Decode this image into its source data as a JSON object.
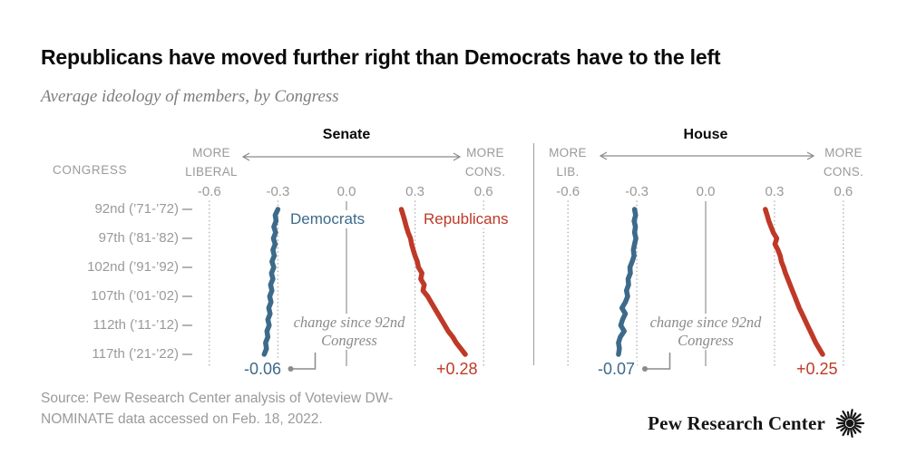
{
  "header": {
    "title": "Republicans have moved further right than Democrats have to the left",
    "subtitle": "Average ideology of members, by Congress"
  },
  "y_axis": {
    "header": "CONGRESS",
    "rows": [
      {
        "congress": 92,
        "label": "92nd (’71-’72)"
      },
      {
        "congress": 97,
        "label": "97th (’81-’82)"
      },
      {
        "congress": 102,
        "label": "102nd (’91-’92)"
      },
      {
        "congress": 107,
        "label": "107th (’01-’02)"
      },
      {
        "congress": 112,
        "label": "112th (’11-’12)"
      },
      {
        "congress": 117,
        "label": "117th (’21-’22)"
      }
    ]
  },
  "chart_data": [
    {
      "type": "line",
      "title": "Senate",
      "x_axis": {
        "left_label": "MORE LIBERAL",
        "right_label": "MORE CONS.",
        "ticks": [
          -0.6,
          -0.3,
          0.0,
          0.3,
          0.6
        ],
        "lim": [
          -0.6,
          0.6
        ]
      },
      "congresses": [
        92,
        93,
        94,
        95,
        96,
        97,
        98,
        99,
        100,
        101,
        102,
        103,
        104,
        105,
        106,
        107,
        108,
        109,
        110,
        111,
        112,
        113,
        114,
        115,
        116,
        117
      ],
      "series": [
        {
          "name": "Democrats",
          "color": "#3d6a8a",
          "values": [
            -0.3,
            -0.312,
            -0.308,
            -0.318,
            -0.31,
            -0.32,
            -0.312,
            -0.322,
            -0.316,
            -0.326,
            -0.318,
            -0.328,
            -0.322,
            -0.332,
            -0.326,
            -0.336,
            -0.33,
            -0.34,
            -0.334,
            -0.344,
            -0.338,
            -0.348,
            -0.344,
            -0.354,
            -0.35,
            -0.36
          ]
        },
        {
          "name": "Republicans",
          "color": "#bf3927",
          "values": [
            0.24,
            0.248,
            0.255,
            0.262,
            0.27,
            0.28,
            0.285,
            0.292,
            0.3,
            0.31,
            0.315,
            0.33,
            0.325,
            0.34,
            0.335,
            0.355,
            0.37,
            0.385,
            0.4,
            0.415,
            0.43,
            0.445,
            0.465,
            0.48,
            0.5,
            0.52
          ]
        }
      ],
      "annotations": {
        "note": "change since 92nd Congress",
        "dem_change": "-0.06",
        "rep_change": "+0.28"
      }
    },
    {
      "type": "line",
      "title": "House",
      "x_axis": {
        "left_label": "MORE LIB.",
        "right_label": "MORE CONS.",
        "ticks": [
          -0.6,
          -0.3,
          0.0,
          0.3,
          0.6
        ],
        "lim": [
          -0.6,
          0.6
        ]
      },
      "congresses": [
        92,
        93,
        94,
        95,
        96,
        97,
        98,
        99,
        100,
        101,
        102,
        103,
        104,
        105,
        106,
        107,
        108,
        109,
        110,
        111,
        112,
        113,
        114,
        115,
        116,
        117
      ],
      "series": [
        {
          "name": "Democrats",
          "color": "#3d6a8a",
          "values": [
            -0.31,
            -0.305,
            -0.312,
            -0.306,
            -0.31,
            -0.304,
            -0.31,
            -0.315,
            -0.312,
            -0.32,
            -0.33,
            -0.328,
            -0.338,
            -0.336,
            -0.345,
            -0.34,
            -0.35,
            -0.365,
            -0.35,
            -0.362,
            -0.37,
            -0.355,
            -0.372,
            -0.38,
            -0.376,
            -0.38
          ]
        },
        {
          "name": "Republicans",
          "color": "#bf3927",
          "values": [
            0.26,
            0.268,
            0.275,
            0.285,
            0.295,
            0.31,
            0.302,
            0.315,
            0.325,
            0.33,
            0.34,
            0.348,
            0.358,
            0.368,
            0.378,
            0.388,
            0.398,
            0.408,
            0.42,
            0.432,
            0.444,
            0.456,
            0.468,
            0.48,
            0.495,
            0.51
          ]
        }
      ],
      "annotations": {
        "note": "change since 92nd Congress",
        "dem_change": "-0.07",
        "rep_change": "+0.25"
      }
    }
  ],
  "colors": {
    "dem": "#3d6a8a",
    "rep": "#bf3927",
    "axis_gray": "#9a9a9a",
    "grid_dot": "#b3b3b3",
    "line_gray": "#8a8a8a"
  },
  "footer": {
    "source": "Source: Pew Research Center analysis of Voteview DW-NOMINATE data accessed on Feb. 18, 2022.",
    "logo_text": "Pew Research Center"
  }
}
